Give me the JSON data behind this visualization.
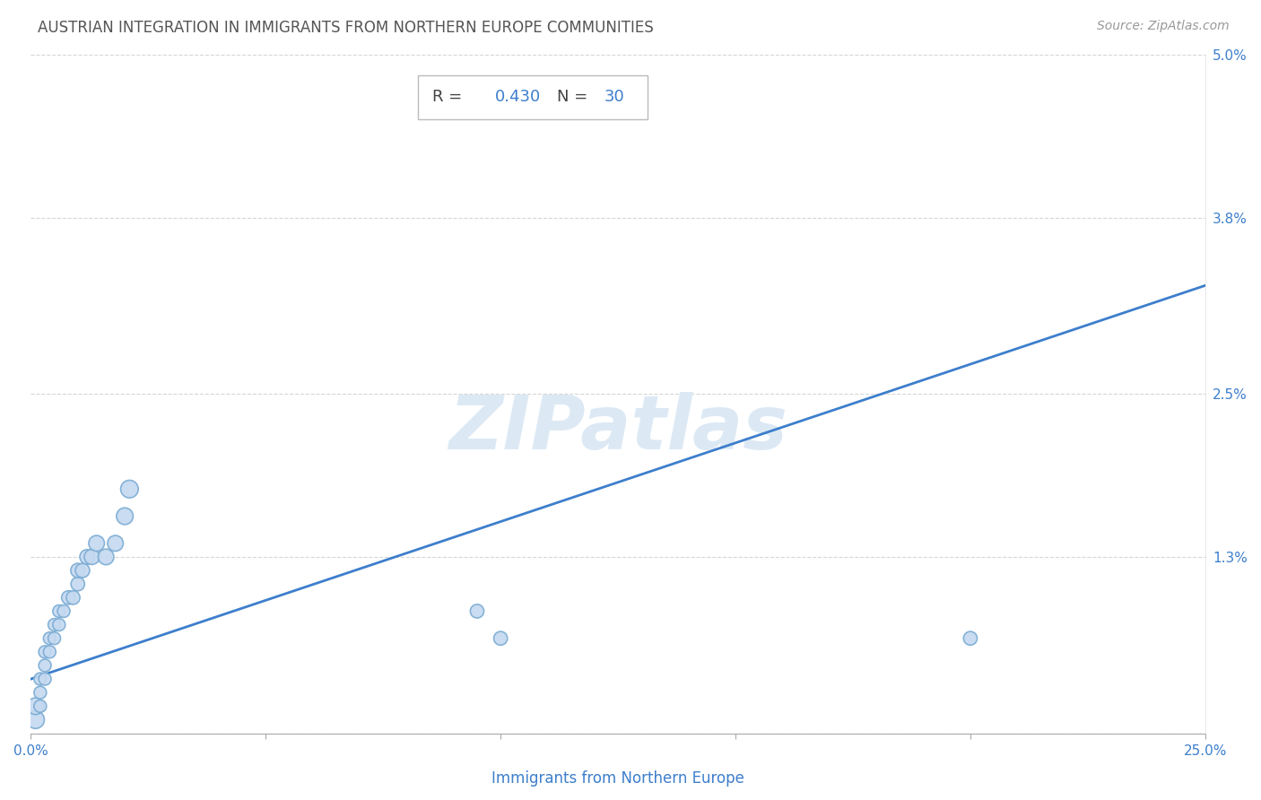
{
  "title": "AUSTRIAN INTEGRATION IN IMMIGRANTS FROM NORTHERN EUROPE COMMUNITIES",
  "source": "Source: ZipAtlas.com",
  "xlabel": "Immigrants from Northern Europe",
  "R": 0.43,
  "N": 30,
  "xlim": [
    0.0,
    0.25
  ],
  "ylim": [
    0.0,
    0.05
  ],
  "ytick_vals": [
    0.0,
    0.013,
    0.025,
    0.038,
    0.05
  ],
  "ytick_labels": [
    "",
    "1.3%",
    "2.5%",
    "3.8%",
    "5.0%"
  ],
  "xtick_vals": [
    0.0,
    0.05,
    0.1,
    0.15,
    0.2,
    0.25
  ],
  "xtick_labels": [
    "0.0%",
    "",
    "",
    "",
    "",
    "25.0%"
  ],
  "scatter_x": [
    0.001,
    0.001,
    0.002,
    0.002,
    0.002,
    0.003,
    0.003,
    0.003,
    0.004,
    0.004,
    0.005,
    0.005,
    0.006,
    0.006,
    0.007,
    0.008,
    0.009,
    0.01,
    0.01,
    0.011,
    0.012,
    0.013,
    0.014,
    0.016,
    0.018,
    0.02,
    0.021,
    0.095,
    0.1,
    0.2
  ],
  "scatter_y": [
    0.001,
    0.002,
    0.002,
    0.003,
    0.004,
    0.004,
    0.005,
    0.006,
    0.006,
    0.007,
    0.007,
    0.008,
    0.008,
    0.009,
    0.009,
    0.01,
    0.01,
    0.011,
    0.012,
    0.012,
    0.013,
    0.013,
    0.014,
    0.013,
    0.014,
    0.016,
    0.018,
    0.009,
    0.007,
    0.007
  ],
  "scatter_sizes": [
    200,
    180,
    100,
    100,
    100,
    100,
    100,
    100,
    100,
    100,
    100,
    100,
    100,
    100,
    100,
    120,
    120,
    120,
    130,
    130,
    140,
    150,
    160,
    160,
    160,
    180,
    200,
    120,
    120,
    120
  ],
  "line_color": "#3d7ecc",
  "scatter_fill_color": "#c5d9f0",
  "scatter_edge_color": "#7bacd4",
  "title_color": "#555555",
  "source_color": "#999999",
  "axis_label_color": "#3d7ecc",
  "ylabel_color": "#555555",
  "grid_color": "#cccccc",
  "watermark_text": "ZIPatlas",
  "watermark_color": "#dce9f5",
  "box_edge_color": "#bbbbbb",
  "box_face_color": "#ffffff",
  "ann_text_color": "#444444",
  "ann_val_color": "#3d7ecc",
  "line_start_y": 0.004,
  "line_end_y": 0.033
}
